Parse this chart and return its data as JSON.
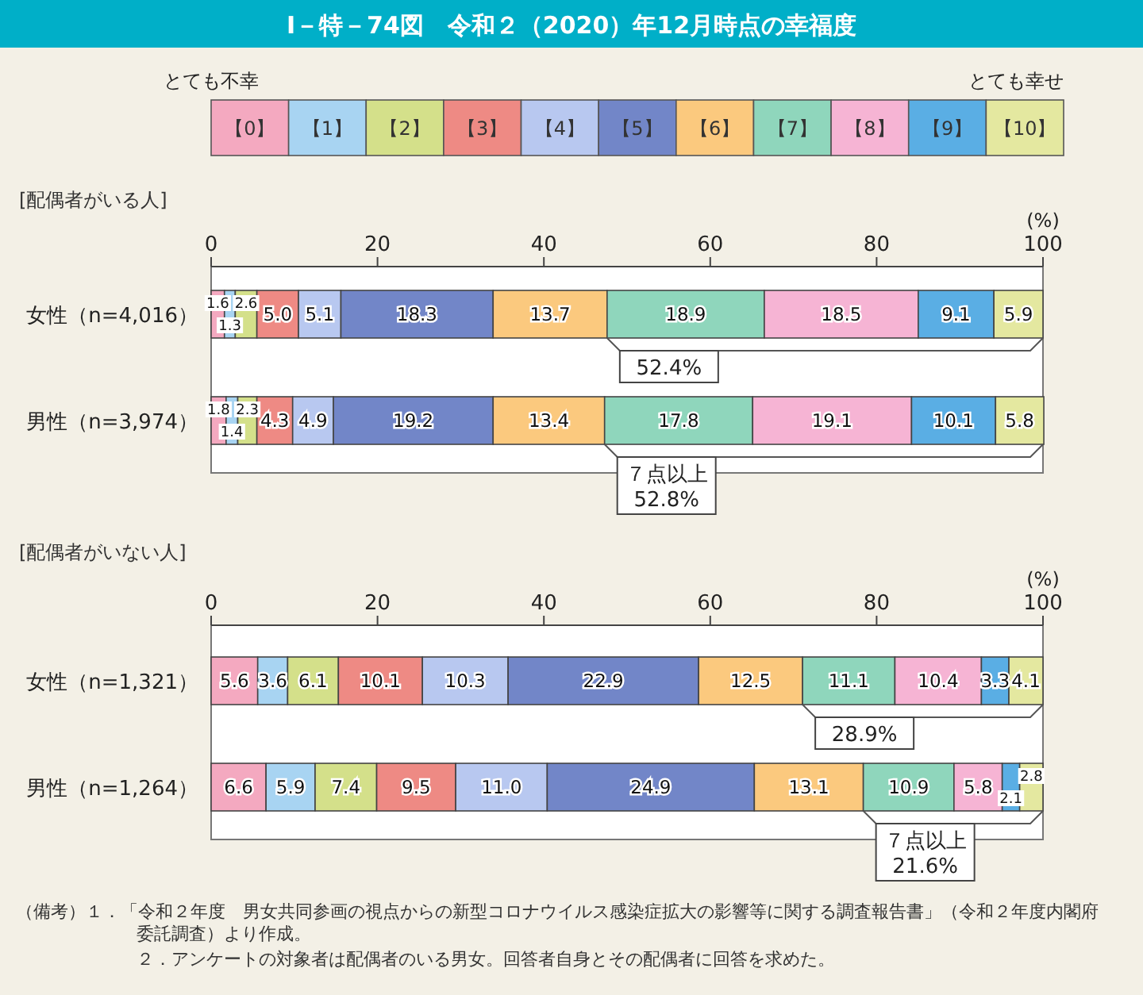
{
  "chart_data": [
    {
      "type": "bar",
      "orientation": "horizontal",
      "stacked": true,
      "data_labels": true,
      "legend": "top",
      "grid": false,
      "title": "Ⅰ－特－74図　令和２（2020）年12月時点の幸福度",
      "subtitle": "[配偶者がいる人]",
      "xlabel": "(%)",
      "xlim": [
        0,
        100
      ],
      "xticks": [
        0,
        20,
        40,
        60,
        80,
        100
      ],
      "categories": [
        "女性（n=4,016）",
        "男性（n=3,974）"
      ],
      "series": [
        {
          "name": "【0】",
          "color": "#f4a9c0",
          "values": [
            1.6,
            1.8
          ]
        },
        {
          "name": "【1】",
          "color": "#a8d4f2",
          "values": [
            1.3,
            1.4
          ]
        },
        {
          "name": "【2】",
          "color": "#d4e08a",
          "values": [
            2.6,
            2.3
          ]
        },
        {
          "name": "【3】",
          "color": "#ee8a84",
          "values": [
            5.0,
            4.3
          ],
          "value_labels": [
            "5.0",
            "4.3"
          ]
        },
        {
          "name": "【4】",
          "color": "#b8c8f0",
          "values": [
            5.1,
            4.9
          ]
        },
        {
          "name": "【5】",
          "color": "#7286c8",
          "values": [
            18.3,
            19.2
          ]
        },
        {
          "name": "【6】",
          "color": "#fbc97e",
          "values": [
            13.7,
            13.4
          ]
        },
        {
          "name": "【7】",
          "color": "#8fd6bc",
          "values": [
            18.9,
            17.8
          ]
        },
        {
          "name": "【8】",
          "color": "#f6b4d4",
          "values": [
            18.5,
            19.1
          ]
        },
        {
          "name": "【9】",
          "color": "#5aaee4",
          "values": [
            9.1,
            10.1
          ]
        },
        {
          "name": "【10】",
          "color": "#e4e8a0",
          "values": [
            5.9,
            5.8
          ]
        }
      ],
      "annotations": [
        "とても不幸",
        "とても幸せ",
        {
          "text": "52.4%",
          "x": 47.6,
          "y": "女性（n=4,016）"
        },
        {
          "text": "７点以上\n52.8%",
          "x": 47.3,
          "y": "男性（n=3,974）"
        }
      ]
    },
    {
      "type": "bar",
      "orientation": "horizontal",
      "stacked": true,
      "data_labels": true,
      "grid": false,
      "subtitle": "[配偶者がいない人]",
      "xlabel": "(%)",
      "xlim": [
        0,
        100
      ],
      "xticks": [
        0,
        20,
        40,
        60,
        80,
        100
      ],
      "categories": [
        "女性（n=1,321）",
        "男性（n=1,264）"
      ],
      "series": [
        {
          "color": "#f4a9c0",
          "values": [
            5.6,
            6.6
          ]
        },
        {
          "color": "#a8d4f2",
          "values": [
            3.6,
            5.9
          ]
        },
        {
          "color": "#d4e08a",
          "values": [
            6.1,
            7.4
          ]
        },
        {
          "color": "#ee8a84",
          "values": [
            10.1,
            9.5
          ]
        },
        {
          "color": "#b8c8f0",
          "values": [
            10.3,
            11.0
          ],
          "value_labels": [
            "10.3",
            "11.0"
          ]
        },
        {
          "color": "#7286c8",
          "values": [
            22.9,
            24.9
          ]
        },
        {
          "color": "#fbc97e",
          "values": [
            12.5,
            13.1
          ]
        },
        {
          "color": "#8fd6bc",
          "values": [
            11.1,
            10.9
          ]
        },
        {
          "color": "#f6b4d4",
          "values": [
            10.4,
            5.8
          ]
        },
        {
          "color": "#5aaee4",
          "values": [
            3.3,
            2.1
          ]
        },
        {
          "color": "#e4e8a0",
          "values": [
            4.1,
            2.8
          ]
        }
      ],
      "annotations": [
        {
          "text": "28.9%",
          "x": 71.1,
          "y": "女性（n=1,321）"
        },
        {
          "text": "７点以上\n21.6%",
          "x": 78.4,
          "y": "男性（n=1,264）"
        },
        "（備考）１．「令和２年度　男女共同参画の視点からの新型コロナウイルス感染症拡大の影響等に関する調査報告書」（令和２年度内閣府委託調査）より作成。",
        "２．アンケートの対象者は配偶者のいる男女。回答者自身とその配偶者に回答を求めた。"
      ]
    }
  ]
}
